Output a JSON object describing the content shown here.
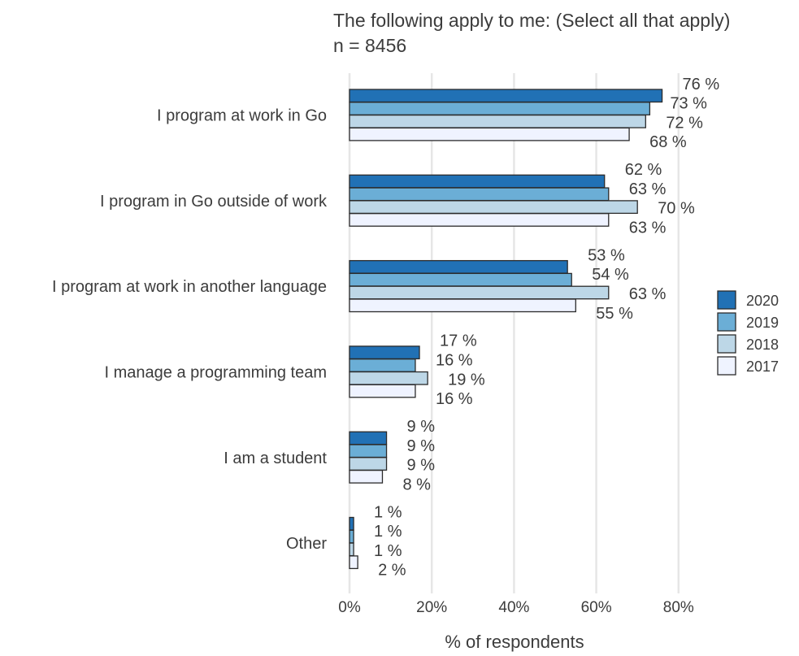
{
  "chart_data": {
    "type": "bar",
    "orientation": "horizontal",
    "title": "The following apply to me: (Select all that apply)",
    "subtitle": "n = 8456",
    "xlabel": "% of respondents",
    "ylabel": "",
    "xlim": [
      0,
      80
    ],
    "xticks": [
      0,
      20,
      40,
      60,
      80
    ],
    "xtick_labels": [
      "0%",
      "20%",
      "40%",
      "60%",
      "80%"
    ],
    "grid": "vertical",
    "legend_position": "right",
    "categories": [
      "I program at work in Go",
      "I program in Go outside of work",
      "I program at work in another language",
      "I manage a programming team",
      "I am a student",
      "Other"
    ],
    "series": [
      {
        "name": "2020",
        "color": "#2171b5",
        "values": [
          76,
          62,
          53,
          17,
          9,
          1
        ],
        "labels": [
          "76 %",
          "62 %",
          "53 %",
          "17 %",
          "9 %",
          "1 %"
        ]
      },
      {
        "name": "2019",
        "color": "#6baed6",
        "values": [
          73,
          63,
          54,
          16,
          9,
          1
        ],
        "labels": [
          "73 %",
          "63 %",
          "54 %",
          "16 %",
          "9 %",
          "1 %"
        ]
      },
      {
        "name": "2018",
        "color": "#bdd7e7",
        "values": [
          72,
          70,
          63,
          19,
          9,
          1
        ],
        "labels": [
          "72 %",
          "70 %",
          "63 %",
          "19 %",
          "9 %",
          "1 %"
        ]
      },
      {
        "name": "2017",
        "color": "#eff3ff",
        "values": [
          68,
          63,
          55,
          16,
          8,
          2
        ],
        "labels": [
          "68 %",
          "63 %",
          "55 %",
          "16 %",
          "8 %",
          "2 %"
        ]
      }
    ]
  }
}
